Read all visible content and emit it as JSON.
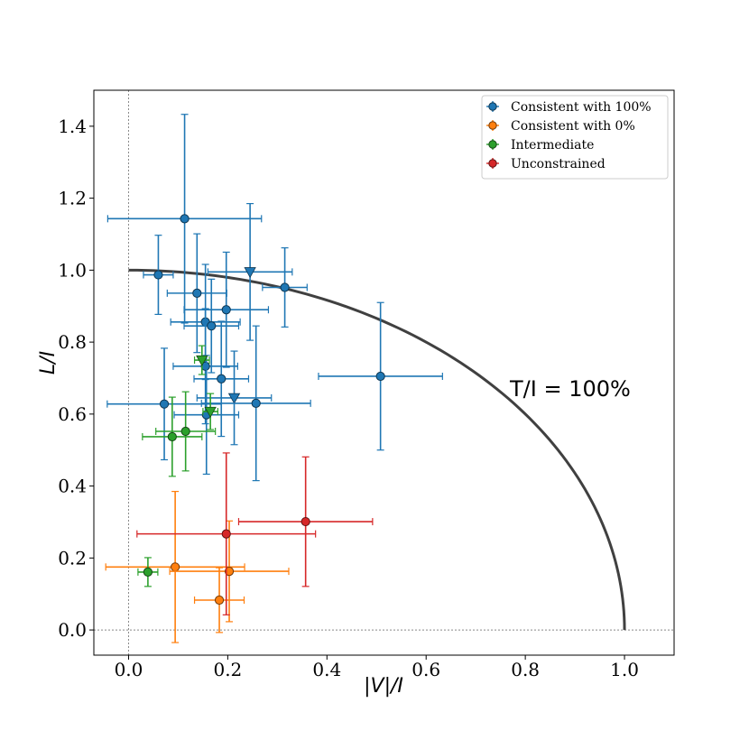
{
  "chart_data": {
    "type": "scatter",
    "xlabel": "|V|/I",
    "ylabel": "L/I",
    "xlim": [
      -0.07,
      1.1
    ],
    "ylim": [
      -0.07,
      1.5
    ],
    "xticks": [
      "0.0",
      "0.2",
      "0.4",
      "0.6",
      "0.8",
      "1.0"
    ],
    "xtick_values": [
      0.0,
      0.2,
      0.4,
      0.6,
      0.8,
      1.0
    ],
    "yticks": [
      "0.0",
      "0.2",
      "0.4",
      "0.6",
      "0.8",
      "1.0",
      "1.2",
      "1.4"
    ],
    "ytick_values": [
      0.0,
      0.2,
      0.4,
      0.6,
      0.8,
      1.0,
      1.2,
      1.4
    ],
    "legend_position": "top-right",
    "reference_lines": {
      "x": 0.0,
      "y": 0.0,
      "style": "dotted"
    },
    "curve": {
      "label": "T/I = 100%",
      "type": "quarter-circle",
      "radius": 1.0,
      "color": "#404040"
    },
    "series": [
      {
        "name": "Consistent with 100%",
        "color": "#1f77b4",
        "points": [
          {
            "x": 0.113,
            "y": 1.143,
            "xerr": 0.155,
            "yerr": 0.29,
            "marker": "o"
          },
          {
            "x": 0.06,
            "y": 0.987,
            "xerr": 0.03,
            "yerr": 0.11,
            "marker": "o"
          },
          {
            "x": 0.138,
            "y": 0.936,
            "xerr": 0.06,
            "yerr": 0.165,
            "marker": "o"
          },
          {
            "x": 0.245,
            "y": 0.995,
            "xerr": 0.085,
            "yerr": 0.19,
            "marker": "v"
          },
          {
            "x": 0.315,
            "y": 0.952,
            "xerr": 0.045,
            "yerr": 0.11,
            "marker": "o"
          },
          {
            "x": 0.197,
            "y": 0.89,
            "xerr": 0.085,
            "yerr": 0.16,
            "marker": "o"
          },
          {
            "x": 0.155,
            "y": 0.856,
            "xerr": 0.07,
            "yerr": 0.16,
            "marker": "o"
          },
          {
            "x": 0.167,
            "y": 0.845,
            "xerr": 0.055,
            "yerr": 0.13,
            "marker": "o"
          },
          {
            "x": 0.155,
            "y": 0.733,
            "xerr": 0.065,
            "yerr": 0.16,
            "marker": "o"
          },
          {
            "x": 0.187,
            "y": 0.698,
            "xerr": 0.055,
            "yerr": 0.16,
            "marker": "o"
          },
          {
            "x": 0.213,
            "y": 0.645,
            "xerr": 0.075,
            "yerr": 0.13,
            "marker": "v"
          },
          {
            "x": 0.072,
            "y": 0.628,
            "xerr": 0.115,
            "yerr": 0.155,
            "marker": "o"
          },
          {
            "x": 0.257,
            "y": 0.63,
            "xerr": 0.11,
            "yerr": 0.215,
            "marker": "o"
          },
          {
            "x": 0.157,
            "y": 0.598,
            "xerr": 0.065,
            "yerr": 0.165,
            "marker": "o"
          },
          {
            "x": 0.508,
            "y": 0.705,
            "xerr": 0.125,
            "yerr": 0.205,
            "marker": "o"
          }
        ]
      },
      {
        "name": "Consistent with 0%",
        "color": "#ff7f0e",
        "points": [
          {
            "x": 0.094,
            "y": 0.175,
            "xerr": 0.14,
            "yerr": 0.21,
            "marker": "o"
          },
          {
            "x": 0.203,
            "y": 0.163,
            "xerr": 0.12,
            "yerr": 0.14,
            "marker": "o"
          },
          {
            "x": 0.183,
            "y": 0.083,
            "xerr": 0.05,
            "yerr": 0.09,
            "marker": "o"
          }
        ]
      },
      {
        "name": "Intermediate",
        "color": "#2ca02c",
        "points": [
          {
            "x": 0.148,
            "y": 0.75,
            "xerr": 0.015,
            "yerr": 0.04,
            "marker": "v"
          },
          {
            "x": 0.165,
            "y": 0.607,
            "xerr": 0.015,
            "yerr": 0.05,
            "marker": "v"
          },
          {
            "x": 0.115,
            "y": 0.552,
            "xerr": 0.06,
            "yerr": 0.11,
            "marker": "o"
          },
          {
            "x": 0.088,
            "y": 0.537,
            "xerr": 0.06,
            "yerr": 0.11,
            "marker": "o"
          },
          {
            "x": 0.039,
            "y": 0.161,
            "xerr": 0.02,
            "yerr": 0.04,
            "marker": "o"
          }
        ]
      },
      {
        "name": "Unconstrained",
        "color": "#d62728",
        "points": [
          {
            "x": 0.357,
            "y": 0.301,
            "xerr": 0.135,
            "yerr": 0.18,
            "marker": "o"
          },
          {
            "x": 0.197,
            "y": 0.267,
            "xerr": 0.18,
            "yerr": 0.225,
            "marker": "o"
          }
        ]
      }
    ]
  }
}
